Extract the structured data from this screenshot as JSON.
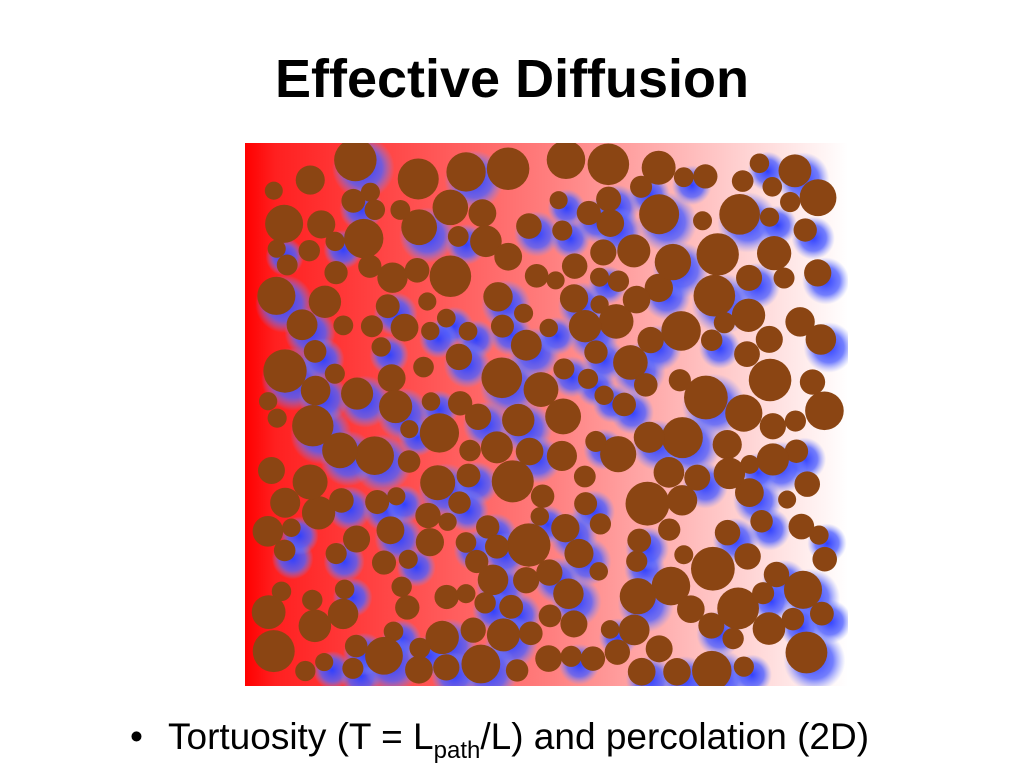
{
  "title": "Effective Diffusion",
  "bullets": [
    {
      "before": "Tortuosity (T = L",
      "subscript": "path",
      "after": "/L) and percolation (2D)"
    }
  ]
}
